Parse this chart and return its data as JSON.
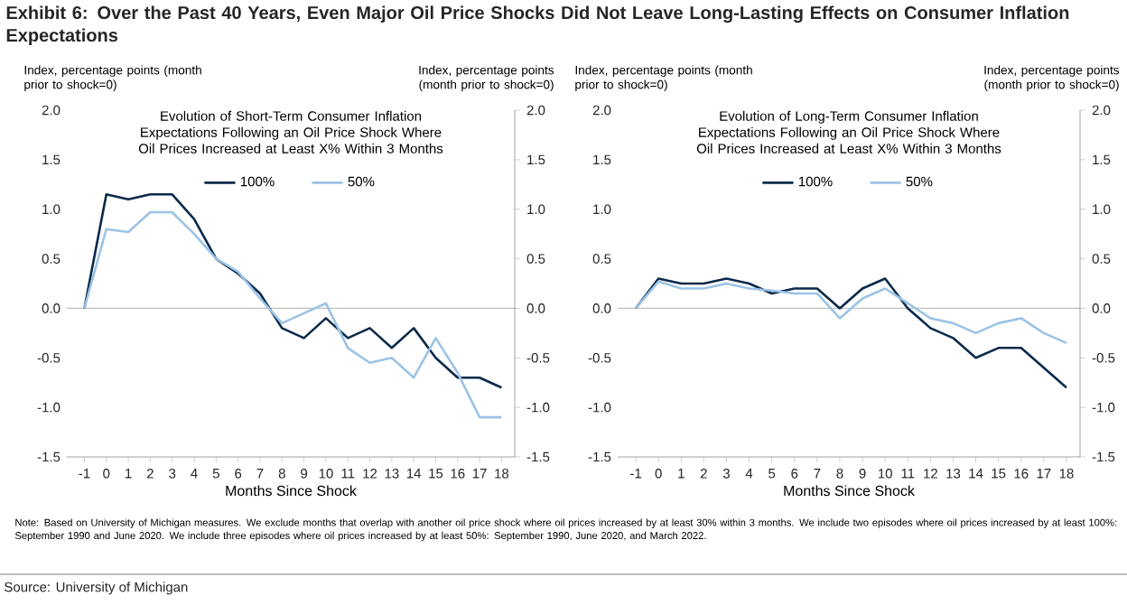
{
  "chart_data": [
    {
      "type": "line",
      "title": "Evolution of Short-Term Consumer Inflation Expectations Following an Oil Price Shock Where Oil Prices Increased at Least X% Within 3 Months",
      "xlabel": "Months Since Shock",
      "ylabel": "Index, percentage points (month prior to shock=0)",
      "y2label": "Index, percentage points (month prior to shock=0)",
      "annotations": [
        "Exhibit 6: Over the Past 40 Years, Even Major Oil Price Shocks Did Not Leave Long-Lasting Effects on Consumer Inflation Expectations"
      ],
      "categories": [
        "-1",
        "0",
        "1",
        "2",
        "3",
        "4",
        "5",
        "6",
        "7",
        "8",
        "9",
        "10",
        "11",
        "12",
        "13",
        "14",
        "15",
        "16",
        "17",
        "18"
      ],
      "series": [
        {
          "name": "100%",
          "color": "#0b2a4a",
          "values": [
            0,
            1.15,
            1.1,
            1.15,
            1.15,
            0.9,
            0.5,
            0.35,
            0.15,
            -0.2,
            -0.3,
            -0.1,
            -0.3,
            -0.2,
            -0.4,
            -0.2,
            -0.5,
            -0.7,
            -0.7,
            -0.8
          ]
        },
        {
          "name": "50%",
          "color": "#9cc3e6",
          "values": [
            0,
            0.8,
            0.77,
            0.97,
            0.97,
            0.75,
            0.5,
            0.37,
            0.1,
            -0.15,
            -0.05,
            0.05,
            -0.4,
            -0.55,
            -0.5,
            -0.7,
            -0.3,
            -0.65,
            -1.1,
            -1.1
          ]
        }
      ],
      "ylim": [
        -1.5,
        2.0
      ],
      "yticks": [
        -1.5,
        {
          "value": -1,
          "label": "-1.0"
        },
        -0.5,
        {
          "value": 0,
          "label": "0.0"
        },
        0.5,
        {
          "value": 1,
          "label": "1.0"
        },
        1.5,
        {
          "value": 2,
          "label": "2.0"
        }
      ],
      "y2lim": [
        -1.5,
        2.0
      ],
      "y2ticks": [
        -1.5,
        {
          "value": -1,
          "label": "-1.0"
        },
        -0.5,
        {
          "value": 0,
          "label": "0.0"
        },
        0.5,
        {
          "value": 1,
          "label": "1.0"
        },
        1.5,
        {
          "value": 2,
          "label": "2.0"
        }
      ],
      "ref_lines": [
        {
          "axis": "y",
          "value": 0,
          "color": "#bfbfbf"
        }
      ],
      "legend": "top"
    },
    {
      "type": "line",
      "title": "Evolution of Long-Term Consumer Inflation Expectations Following an Oil Price Shock Where Oil Prices Increased at Least X% Within 3 Months",
      "xlabel": "Months Since Shock",
      "ylabel": "Index, percentage points (month prior to shock=0)",
      "y2label": "Index, percentage points (month prior to shock=0)",
      "annotations": [
        "Note: Based on University of Michigan measures. We exclude months that overlap with another oil price shock where oil prices increased by at least 30% within 3 months. We include two episodes where oil prices increased by at least 100%: September 1990 and June 2020. We include three episodes where oil prices increased by at least 50%: September 1990, June 2020, and March 2022.",
        "Source: University of Michigan"
      ],
      "categories": [
        "-1",
        "0",
        "1",
        "2",
        "3",
        "4",
        "5",
        "6",
        "7",
        "8",
        "9",
        "10",
        "11",
        "12",
        "13",
        "14",
        "15",
        "16",
        "17",
        "18"
      ],
      "series": [
        {
          "name": "100%",
          "color": "#0b2a4a",
          "values": [
            0,
            0.3,
            0.25,
            0.25,
            0.3,
            0.25,
            0.15,
            0.2,
            0.2,
            0,
            0.2,
            0.3,
            0,
            -0.2,
            -0.3,
            -0.5,
            -0.4,
            -0.4,
            -0.6,
            -0.8
          ]
        },
        {
          "name": "50%",
          "color": "#9cc3e6",
          "values": [
            0,
            0.27,
            0.2,
            0.2,
            0.25,
            0.2,
            0.18,
            0.15,
            0.15,
            -0.1,
            0.1,
            0.2,
            0.05,
            -0.1,
            -0.15,
            -0.25,
            -0.15,
            -0.1,
            -0.25,
            -0.35
          ]
        }
      ],
      "ylim": [
        -1.5,
        2.0
      ],
      "yticks": [
        -1.5,
        {
          "value": -1,
          "label": "-1.0"
        },
        -0.5,
        {
          "value": 0,
          "label": "0.0"
        },
        0.5,
        {
          "value": 1,
          "label": "1.0"
        },
        1.5,
        {
          "value": 2,
          "label": "2.0"
        }
      ],
      "y2lim": [
        -1.5,
        2.0
      ],
      "y2ticks": [
        -1.5,
        {
          "value": -1,
          "label": "-1.0"
        },
        -0.5,
        {
          "value": 0,
          "label": "0.0"
        },
        0.5,
        {
          "value": 1,
          "label": "1.0"
        },
        1.5,
        {
          "value": 2,
          "label": "2.0"
        }
      ],
      "ref_lines": [
        {
          "axis": "y",
          "value": 0,
          "color": "#bfbfbf"
        }
      ],
      "legend": "top"
    }
  ]
}
